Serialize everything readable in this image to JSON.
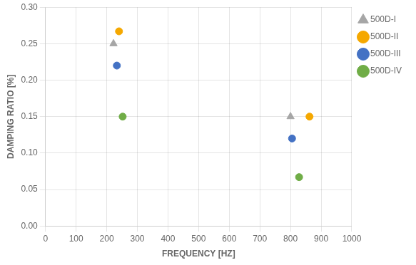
{
  "chart_data": {
    "type": "scatter",
    "xlabel": "FREQUENCY [HZ]",
    "ylabel": "DAMPING RATIO [%]",
    "series": [
      {
        "name": "500D-I",
        "color": "#a6a6a6",
        "marker": "triangle",
        "x": [
          222,
          800
        ],
        "values": [
          0.25,
          0.15
        ]
      },
      {
        "name": "500D-II",
        "color": "#f5a800",
        "marker": "circle",
        "x": [
          240,
          862
        ],
        "values": [
          0.267,
          0.15
        ]
      },
      {
        "name": "500D-III",
        "color": "#4472c4",
        "marker": "circle",
        "x": [
          233,
          805
        ],
        "values": [
          0.22,
          0.12
        ]
      },
      {
        "name": "500D-IV",
        "color": "#70ad47",
        "marker": "circle",
        "x": [
          252,
          828
        ],
        "values": [
          0.15,
          0.067
        ]
      }
    ],
    "xlim": [
      0,
      1000
    ],
    "xticks": [
      0,
      100,
      200,
      300,
      400,
      500,
      600,
      700,
      800,
      900,
      1000
    ],
    "ylim": [
      0,
      0.3
    ],
    "yticks": [
      {
        "value": 0,
        "label": "0.00"
      },
      0.05,
      {
        "value": 0.1,
        "label": "0.10"
      },
      0.15,
      {
        "value": 0.2,
        "label": "0.20"
      },
      0.25,
      {
        "value": 0.3,
        "label": "0.30"
      }
    ],
    "grid": true,
    "legend": "right"
  }
}
